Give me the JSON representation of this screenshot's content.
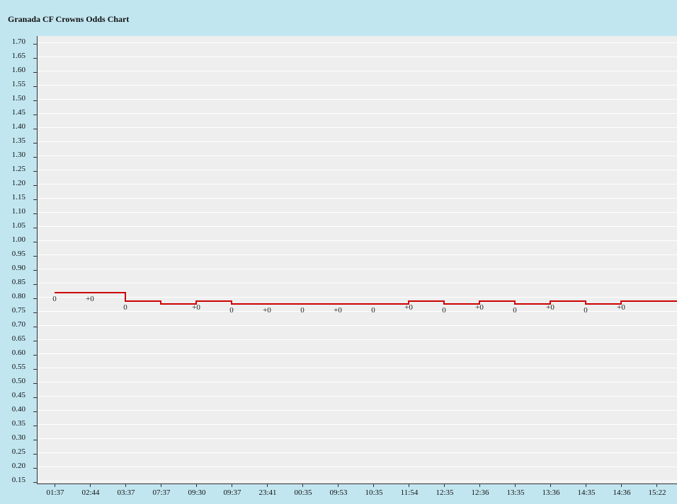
{
  "chart_data": {
    "type": "line",
    "title": "Granada CF Crowns Odds Chart",
    "xlabel": "",
    "ylabel": "",
    "ylim": [
      0.15,
      1.7
    ],
    "y_ticks": [
      "1.70",
      "1.65",
      "1.60",
      "1.55",
      "1.50",
      "1.45",
      "1.40",
      "1.35",
      "1.30",
      "1.25",
      "1.20",
      "1.15",
      "1.10",
      "1.05",
      "1.00",
      "0.95",
      "0.90",
      "0.85",
      "0.80",
      "0.75",
      "0.70",
      "0.65",
      "0.60",
      "0.55",
      "0.50",
      "0.45",
      "0.40",
      "0.35",
      "0.30",
      "0.25",
      "0.20",
      "0.15"
    ],
    "categories": [
      "01:37",
      "02:44",
      "03:37",
      "07:37",
      "09:30",
      "09:37",
      "23:41",
      "00:35",
      "09:53",
      "10:35",
      "11:54",
      "12:35",
      "12:36",
      "13:35",
      "13:36",
      "14:35",
      "14:36",
      "15:22"
    ],
    "series": [
      {
        "color": "#cc0000",
        "step": true,
        "values": [
          0.81,
          0.81,
          0.78,
          0.77,
          0.78,
          0.77,
          0.77,
          0.77,
          0.77,
          0.77,
          0.78,
          0.77,
          0.78,
          0.77,
          0.78,
          0.77,
          0.78,
          0.78
        ],
        "point_labels": [
          "0",
          "+0",
          "0",
          "",
          "+0",
          "0",
          "+0",
          "0",
          "+0",
          "0",
          "+0",
          "0",
          "+0",
          "0",
          "+0",
          "0",
          "+0",
          ""
        ]
      }
    ],
    "grid": true,
    "background": "#eeeeee",
    "frame_color": "#c2e6f0"
  }
}
